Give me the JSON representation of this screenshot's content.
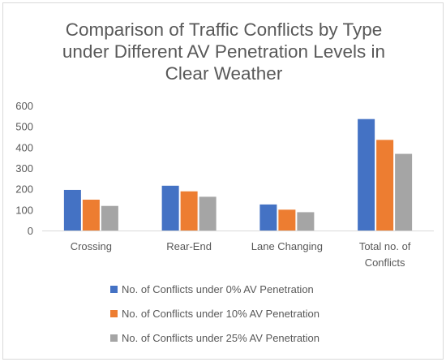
{
  "chart_data": {
    "type": "bar",
    "title_lines": [
      "Comparison of Traffic Conflicts by Type",
      "under Different AV Penetration Levels in",
      "Clear Weather"
    ],
    "categories": [
      [
        "Crossing"
      ],
      [
        "Rear-End"
      ],
      [
        "Lane Changing"
      ],
      [
        "Total no. of",
        "Conflicts"
      ]
    ],
    "series": [
      {
        "name": "No. of Conflicts under 0% AV Penetration",
        "color": "#4472c4",
        "values": [
          195,
          215,
          125,
          535
        ]
      },
      {
        "name": "No. of Conflicts under 10% AV Penetration",
        "color": "#ed7d31",
        "values": [
          148,
          188,
          100,
          435
        ]
      },
      {
        "name": "No. of Conflicts under 25% AV Penetration",
        "color": "#a5a5a5",
        "values": [
          118,
          162,
          88,
          368
        ]
      }
    ],
    "ylim": [
      0,
      600
    ],
    "yticks": [
      0,
      100,
      200,
      300,
      400,
      500,
      600
    ],
    "grid": false,
    "legend_position": "bottom"
  }
}
